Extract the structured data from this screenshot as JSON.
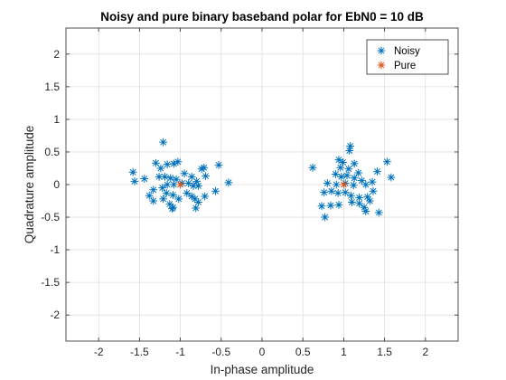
{
  "chart_data": {
    "type": "scatter",
    "title": "Noisy and pure binary baseband polar for EbN0 = 10 dB",
    "xlabel": "In-phase amplitude",
    "ylabel": "Quadrature amplitude",
    "xlim": [
      -2.4,
      2.4
    ],
    "ylim": [
      -2.4,
      2.4
    ],
    "xticks": [
      -2,
      -1.5,
      -1,
      -0.5,
      0,
      0.5,
      1,
      1.5,
      2
    ],
    "yticks": [
      -2,
      -1.5,
      -1,
      -0.5,
      0,
      0.5,
      1,
      1.5,
      2
    ],
    "xtick_labels": [
      "-2",
      "-1.5",
      "-1",
      "-0.5",
      "0",
      "0.5",
      "1",
      "1.5",
      "2"
    ],
    "ytick_labels": [
      "-2",
      "-1.5",
      "-1",
      "-0.5",
      "0",
      "0.5",
      "1",
      "1.5",
      "2"
    ],
    "grid": true,
    "legend_position": "top-right",
    "series": [
      {
        "name": "Noisy",
        "marker": "asterisk",
        "color": "#0072BD",
        "points": [
          [
            -1.21,
            0.65
          ],
          [
            -1.58,
            0.19
          ],
          [
            -1.56,
            0.05
          ],
          [
            -1.44,
            0.09
          ],
          [
            -1.3,
            0.33
          ],
          [
            -1.24,
            0.25
          ],
          [
            -1.16,
            0.31
          ],
          [
            -1.08,
            0.32
          ],
          [
            -1.03,
            0.35
          ],
          [
            -1.26,
            0.12
          ],
          [
            -1.19,
            0.12
          ],
          [
            -1.12,
            0.1
          ],
          [
            -1.05,
            0.08
          ],
          [
            -1.16,
            0.0
          ],
          [
            -1.08,
            0.0
          ],
          [
            -0.95,
            0.17
          ],
          [
            -0.86,
            0.12
          ],
          [
            -0.74,
            0.24
          ],
          [
            -0.71,
            0.26
          ],
          [
            -0.53,
            0.3
          ],
          [
            -0.69,
            0.13
          ],
          [
            -0.8,
            0.05
          ],
          [
            -0.9,
            0.02
          ],
          [
            -0.98,
            0.02
          ],
          [
            -0.84,
            -0.02
          ],
          [
            -0.78,
            -0.02
          ],
          [
            -0.41,
            0.03
          ],
          [
            -1.33,
            -0.08
          ],
          [
            -1.22,
            -0.05
          ],
          [
            -1.17,
            -0.13
          ],
          [
            -1.09,
            -0.16
          ],
          [
            -1.38,
            -0.17
          ],
          [
            -1.33,
            -0.25
          ],
          [
            -1.21,
            -0.22
          ],
          [
            -1.13,
            -0.3
          ],
          [
            -1.09,
            -0.35
          ],
          [
            -1.02,
            -0.22
          ],
          [
            -0.92,
            -0.13
          ],
          [
            -0.86,
            -0.18
          ],
          [
            -0.82,
            -0.22
          ],
          [
            -0.81,
            -0.36
          ],
          [
            -0.78,
            -0.27
          ],
          [
            -0.7,
            -0.18
          ],
          [
            -0.57,
            -0.1
          ],
          [
            -1.1,
            -0.37
          ],
          [
            1.08,
            0.59
          ],
          [
            1.07,
            0.52
          ],
          [
            0.94,
            0.38
          ],
          [
            0.99,
            0.34
          ],
          [
            1.13,
            0.32
          ],
          [
            0.62,
            0.26
          ],
          [
            0.96,
            0.26
          ],
          [
            1.06,
            0.24
          ],
          [
            1.18,
            0.18
          ],
          [
            1.41,
            0.2
          ],
          [
            1.53,
            0.35
          ],
          [
            1.58,
            0.11
          ],
          [
            0.9,
            0.16
          ],
          [
            0.97,
            0.12
          ],
          [
            1.04,
            0.14
          ],
          [
            1.13,
            0.1
          ],
          [
            1.22,
            0.06
          ],
          [
            0.8,
            0.02
          ],
          [
            0.91,
            0.0
          ],
          [
            1.02,
            0.02
          ],
          [
            1.12,
            -0.01
          ],
          [
            1.27,
            0.0
          ],
          [
            1.35,
            0.04
          ],
          [
            0.76,
            -0.12
          ],
          [
            0.85,
            -0.1
          ],
          [
            0.93,
            -0.13
          ],
          [
            1.02,
            -0.12
          ],
          [
            1.09,
            -0.17
          ],
          [
            1.19,
            -0.2
          ],
          [
            1.29,
            -0.19
          ],
          [
            1.36,
            -0.1
          ],
          [
            0.73,
            -0.33
          ],
          [
            0.84,
            -0.32
          ],
          [
            0.94,
            -0.31
          ],
          [
            1.1,
            -0.27
          ],
          [
            1.19,
            -0.29
          ],
          [
            1.32,
            -0.25
          ],
          [
            1.25,
            -0.35
          ],
          [
            1.27,
            -0.41
          ],
          [
            1.43,
            -0.43
          ],
          [
            0.77,
            -0.5
          ]
        ]
      },
      {
        "name": "Pure",
        "marker": "asterisk",
        "color": "#D95319",
        "points": [
          [
            -1,
            0
          ],
          [
            1,
            0
          ]
        ]
      }
    ]
  }
}
